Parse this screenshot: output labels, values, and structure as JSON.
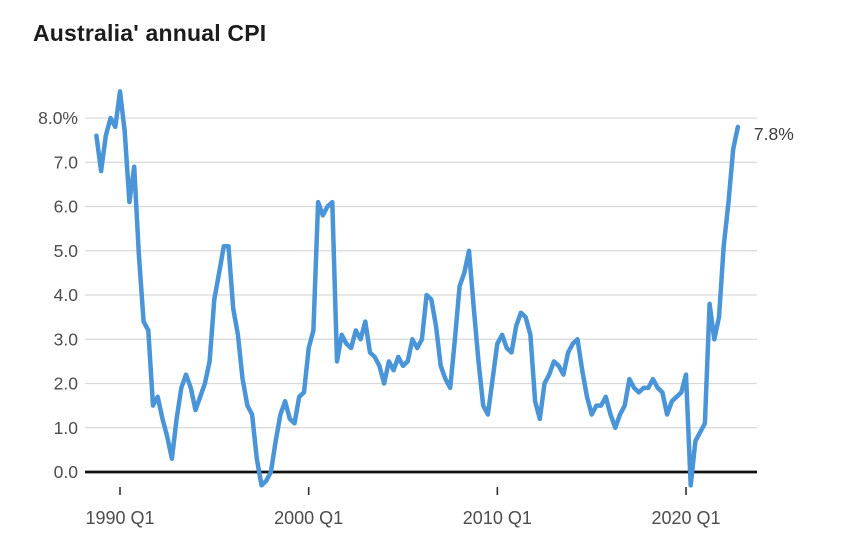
{
  "chart_data": {
    "type": "line",
    "title": "Australia' annual CPI",
    "series_name": "Australia annual CPI (%)",
    "end_label": "7.8%",
    "x": [
      "1988 Q4",
      "1989 Q1",
      "1989 Q2",
      "1989 Q3",
      "1989 Q4",
      "1990 Q1",
      "1990 Q2",
      "1990 Q3",
      "1990 Q4",
      "1991 Q1",
      "1991 Q2",
      "1991 Q3",
      "1991 Q4",
      "1992 Q1",
      "1992 Q2",
      "1992 Q3",
      "1992 Q4",
      "1993 Q1",
      "1993 Q2",
      "1993 Q3",
      "1993 Q4",
      "1994 Q1",
      "1994 Q2",
      "1994 Q3",
      "1994 Q4",
      "1995 Q1",
      "1995 Q2",
      "1995 Q3",
      "1995 Q4",
      "1996 Q1",
      "1996 Q2",
      "1996 Q3",
      "1996 Q4",
      "1997 Q1",
      "1997 Q2",
      "1997 Q3",
      "1997 Q4",
      "1998 Q1",
      "1998 Q2",
      "1998 Q3",
      "1998 Q4",
      "1999 Q1",
      "1999 Q2",
      "1999 Q3",
      "1999 Q4",
      "2000 Q1",
      "2000 Q2",
      "2000 Q3",
      "2000 Q4",
      "2001 Q1",
      "2001 Q2",
      "2001 Q3",
      "2001 Q4",
      "2002 Q1",
      "2002 Q2",
      "2002 Q3",
      "2002 Q4",
      "2003 Q1",
      "2003 Q2",
      "2003 Q3",
      "2003 Q4",
      "2004 Q1",
      "2004 Q2",
      "2004 Q3",
      "2004 Q4",
      "2005 Q1",
      "2005 Q2",
      "2005 Q3",
      "2005 Q4",
      "2006 Q1",
      "2006 Q2",
      "2006 Q3",
      "2006 Q4",
      "2007 Q1",
      "2007 Q2",
      "2007 Q3",
      "2007 Q4",
      "2008 Q1",
      "2008 Q2",
      "2008 Q3",
      "2008 Q4",
      "2009 Q1",
      "2009 Q2",
      "2009 Q3",
      "2009 Q4",
      "2010 Q1",
      "2010 Q2",
      "2010 Q3",
      "2010 Q4",
      "2011 Q1",
      "2011 Q2",
      "2011 Q3",
      "2011 Q4",
      "2012 Q1",
      "2012 Q2",
      "2012 Q3",
      "2012 Q4",
      "2013 Q1",
      "2013 Q2",
      "2013 Q3",
      "2013 Q4",
      "2014 Q1",
      "2014 Q2",
      "2014 Q3",
      "2014 Q4",
      "2015 Q1",
      "2015 Q2",
      "2015 Q3",
      "2015 Q4",
      "2016 Q1",
      "2016 Q2",
      "2016 Q3",
      "2016 Q4",
      "2017 Q1",
      "2017 Q2",
      "2017 Q3",
      "2017 Q4",
      "2018 Q1",
      "2018 Q2",
      "2018 Q3",
      "2018 Q4",
      "2019 Q1",
      "2019 Q2",
      "2019 Q3",
      "2019 Q4",
      "2020 Q1",
      "2020 Q2",
      "2020 Q3",
      "2020 Q4",
      "2021 Q1",
      "2021 Q2",
      "2021 Q3",
      "2021 Q4",
      "2022 Q1",
      "2022 Q2",
      "2022 Q3",
      "2022 Q4"
    ],
    "values": [
      7.6,
      6.8,
      7.6,
      8.0,
      7.8,
      8.6,
      7.7,
      6.1,
      6.9,
      4.9,
      3.4,
      3.2,
      1.5,
      1.7,
      1.2,
      0.8,
      0.3,
      1.2,
      1.9,
      2.2,
      1.9,
      1.4,
      1.7,
      2.0,
      2.5,
      3.9,
      4.5,
      5.1,
      5.1,
      3.7,
      3.1,
      2.1,
      1.5,
      1.3,
      0.3,
      -0.3,
      -0.2,
      0.0,
      0.7,
      1.3,
      1.6,
      1.2,
      1.1,
      1.7,
      1.8,
      2.8,
      3.2,
      6.1,
      5.8,
      6.0,
      6.1,
      2.5,
      3.1,
      2.9,
      2.8,
      3.2,
      3.0,
      3.4,
      2.7,
      2.6,
      2.4,
      2.0,
      2.5,
      2.3,
      2.6,
      2.4,
      2.5,
      3.0,
      2.8,
      3.0,
      4.0,
      3.9,
      3.3,
      2.4,
      2.1,
      1.9,
      3.0,
      4.2,
      4.5,
      5.0,
      3.7,
      2.5,
      1.5,
      1.3,
      2.1,
      2.9,
      3.1,
      2.8,
      2.7,
      3.3,
      3.6,
      3.5,
      3.1,
      1.6,
      1.2,
      2.0,
      2.2,
      2.5,
      2.4,
      2.2,
      2.7,
      2.9,
      3.0,
      2.3,
      1.7,
      1.3,
      1.5,
      1.5,
      1.7,
      1.3,
      1.0,
      1.3,
      1.5,
      2.1,
      1.9,
      1.8,
      1.9,
      1.9,
      2.1,
      1.9,
      1.8,
      1.3,
      1.6,
      1.7,
      1.8,
      2.2,
      -0.3,
      0.7,
      0.9,
      1.1,
      3.8,
      3.0,
      3.5,
      5.1,
      6.1,
      7.3,
      7.8
    ],
    "x_ticks": [
      {
        "label": "1990 Q1",
        "index": 5
      },
      {
        "label": "2000 Q1",
        "index": 45
      },
      {
        "label": "2010 Q1",
        "index": 85
      },
      {
        "label": "2020 Q1",
        "index": 125
      }
    ],
    "y_ticks": [
      {
        "label": "0.0",
        "value": 0
      },
      {
        "label": "1.0",
        "value": 1
      },
      {
        "label": "2.0",
        "value": 2
      },
      {
        "label": "3.0",
        "value": 3
      },
      {
        "label": "4.0",
        "value": 4
      },
      {
        "label": "5.0",
        "value": 5
      },
      {
        "label": "6.0",
        "value": 6
      },
      {
        "label": "7.0",
        "value": 7
      },
      {
        "label": "8.0%",
        "value": 8
      }
    ],
    "ylim": [
      -0.6,
      8.8
    ],
    "grid": true,
    "legend": "none",
    "colors": {
      "line": "#4a94d8",
      "gridline": "#d9d9d9",
      "baseline": "#111111",
      "tick": "#333333",
      "axis_label": "#4c4c4c",
      "end_label": "#3c3c3c",
      "title": "#1c1c1c"
    }
  }
}
